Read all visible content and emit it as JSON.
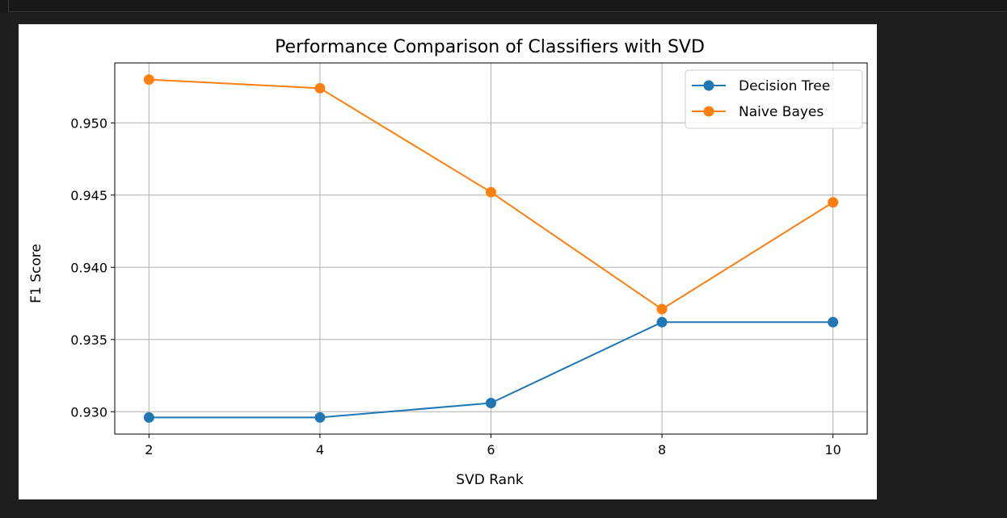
{
  "colors": {
    "page_background": "#1e1e1e",
    "figure_background": "#ffffff",
    "grid": "#b0b0b0",
    "axes": "#000000",
    "series": [
      "#1f77b4",
      "#ff7f0e"
    ]
  },
  "chart_data": {
    "type": "line",
    "title": "Performance Comparison of Classifiers with SVD",
    "xlabel": "SVD Rank",
    "ylabel": "F1 Score",
    "x": [
      2,
      4,
      6,
      8,
      10
    ],
    "series": [
      {
        "name": "Decision Tree",
        "values": [
          0.9296,
          0.9296,
          0.9306,
          0.9362,
          0.9362
        ],
        "marker": "circle"
      },
      {
        "name": "Naive Bayes",
        "values": [
          0.953,
          0.9524,
          0.9452,
          0.9371,
          0.9445
        ],
        "marker": "circle"
      }
    ],
    "xlim": [
      1.6,
      10.4
    ],
    "ylim": [
      0.92845,
      0.95415
    ],
    "xticks": [
      2,
      4,
      6,
      8,
      10
    ],
    "xtick_labels": [
      "2",
      "4",
      "6",
      "8",
      "10"
    ],
    "yticks": [
      0.93,
      0.935,
      0.94,
      0.945,
      0.95
    ],
    "ytick_labels": [
      "0.930",
      "0.935",
      "0.940",
      "0.945",
      "0.950"
    ],
    "grid": true,
    "legend_position": "upper right"
  }
}
